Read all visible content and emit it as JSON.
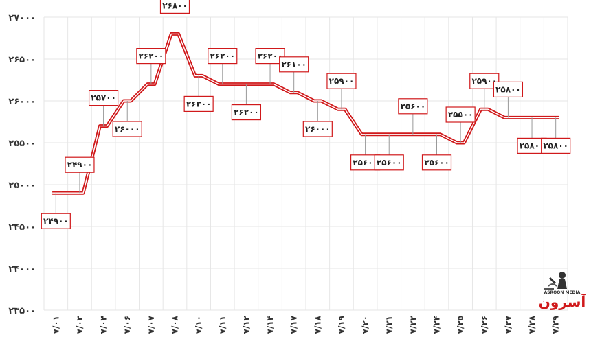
{
  "chart_data": {
    "type": "line",
    "categories": [
      "۷/۰۱",
      "۷/۰۳",
      "۷/۰۴",
      "۷/۰۶",
      "۷/۰۷",
      "۷/۰۸",
      "۷/۱۰",
      "۷/۱۱",
      "۷/۱۲",
      "۷/۱۴",
      "۷/۱۷",
      "۷/۱۸",
      "۷/۱۹",
      "۷/۲۰",
      "۷/۲۱",
      "۷/۲۲",
      "۷/۲۴",
      "۷/۲۵",
      "۷/۲۶",
      "۷/۲۷",
      "۷/۲۸",
      "۷/۲۹"
    ],
    "values": [
      24900,
      24900,
      25700,
      26000,
      26200,
      26800,
      26300,
      26200,
      26200,
      26200,
      26100,
      26000,
      25900,
      25600,
      25600,
      25600,
      25600,
      25500,
      25900,
      25800,
      25800,
      25800
    ],
    "data_labels": [
      "۲۴۹۰۰",
      "۲۴۹۰۰",
      "۲۵۷۰۰",
      "۲۶۰۰۰",
      "۲۶۲۰۰",
      "۲۶۸۰۰",
      "۲۶۳۰۰",
      "۲۶۲۰۰",
      "۲۶۲۰۰",
      "۲۶۲۰۰",
      "۲۶۱۰۰",
      "۲۶۰۰۰",
      "۲۵۹۰۰",
      "۲۵۶۰۰",
      "۲۵۶۰۰",
      "۲۵۶۰۰",
      "۲۵۶۰۰",
      "۲۵۵۰۰",
      "۲۵۹۰۰",
      "۲۵۸۰۰",
      "۲۵۸۰۰",
      "۲۵۸۰۰"
    ],
    "label_side": [
      "below",
      "above",
      "above",
      "below",
      "above",
      "above",
      "below",
      "above",
      "below",
      "above",
      "above",
      "below",
      "above",
      "below",
      "below",
      "above",
      "below",
      "above",
      "above",
      "above",
      "below",
      "below"
    ],
    "ylim": [
      23500,
      27000
    ],
    "yticks": [
      23500,
      24000,
      24500,
      25000,
      25500,
      26000,
      26500,
      27000
    ],
    "ytick_labels": [
      "۲۳۵۰۰",
      "۲۴۰۰۰",
      "۲۴۵۰۰",
      "۲۵۰۰۰",
      "۲۵۵۰۰",
      "۲۶۰۰۰",
      "۲۶۵۰۰",
      "۲۷۰۰۰"
    ],
    "grid": true,
    "line_color": "#d0191b",
    "title": "",
    "xlabel": "",
    "ylabel": ""
  },
  "logo": {
    "brand_text": "آسرون",
    "brand_sub": "ASROON MEDIA",
    "accent": "#d0191b",
    "icon": "welder-icon"
  }
}
